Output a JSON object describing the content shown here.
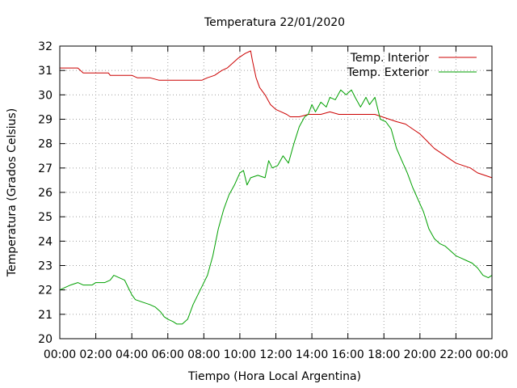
{
  "chart_data": {
    "type": "line",
    "title": "Temperatura 22/01/2020",
    "xlabel": "Tiempo (Hora Local Argentina)",
    "ylabel": "Temperatura (Grados Celsius)",
    "xlim": [
      0,
      24
    ],
    "ylim": [
      20,
      32
    ],
    "grid": true,
    "legend_position": "top-right",
    "x_ticks": [
      "00:00",
      "02:00",
      "04:00",
      "06:00",
      "08:00",
      "10:00",
      "12:00",
      "14:00",
      "16:00",
      "18:00",
      "20:00",
      "22:00",
      "00:00"
    ],
    "y_ticks": [
      "20",
      "21",
      "22",
      "23",
      "24",
      "25",
      "26",
      "27",
      "28",
      "29",
      "30",
      "31",
      "32"
    ],
    "series": [
      {
        "name": "Temp. Interior",
        "color": "#cc0000",
        "points": [
          [
            0,
            31.1
          ],
          [
            0.5,
            31.1
          ],
          [
            1.0,
            31.1
          ],
          [
            1.3,
            30.9
          ],
          [
            2.0,
            30.9
          ],
          [
            2.7,
            30.9
          ],
          [
            2.8,
            30.8
          ],
          [
            4.0,
            30.8
          ],
          [
            4.3,
            30.7
          ],
          [
            5.0,
            30.7
          ],
          [
            5.5,
            30.6
          ],
          [
            6.0,
            30.6
          ],
          [
            7.0,
            30.6
          ],
          [
            7.9,
            30.6
          ],
          [
            8.2,
            30.7
          ],
          [
            8.6,
            30.8
          ],
          [
            9.0,
            31.0
          ],
          [
            9.3,
            31.1
          ],
          [
            9.6,
            31.3
          ],
          [
            9.9,
            31.5
          ],
          [
            10.1,
            31.6
          ],
          [
            10.3,
            31.7
          ],
          [
            10.6,
            31.8
          ],
          [
            10.7,
            31.4
          ],
          [
            10.9,
            30.7
          ],
          [
            11.1,
            30.3
          ],
          [
            11.4,
            30.0
          ],
          [
            11.7,
            29.6
          ],
          [
            12.0,
            29.4
          ],
          [
            12.3,
            29.3
          ],
          [
            12.6,
            29.2
          ],
          [
            12.8,
            29.1
          ],
          [
            13.3,
            29.1
          ],
          [
            13.8,
            29.2
          ],
          [
            14.5,
            29.2
          ],
          [
            15.0,
            29.3
          ],
          [
            15.5,
            29.2
          ],
          [
            16.5,
            29.2
          ],
          [
            17.5,
            29.2
          ],
          [
            17.9,
            29.1
          ],
          [
            18.3,
            29.0
          ],
          [
            18.7,
            28.9
          ],
          [
            19.2,
            28.8
          ],
          [
            19.6,
            28.6
          ],
          [
            20.0,
            28.4
          ],
          [
            20.4,
            28.1
          ],
          [
            20.8,
            27.8
          ],
          [
            21.2,
            27.6
          ],
          [
            21.6,
            27.4
          ],
          [
            22.0,
            27.2
          ],
          [
            22.4,
            27.1
          ],
          [
            22.8,
            27.0
          ],
          [
            23.2,
            26.8
          ],
          [
            23.6,
            26.7
          ],
          [
            24.0,
            26.6
          ]
        ]
      },
      {
        "name": "Temp. Exterior",
        "color": "#00a000",
        "points": [
          [
            0,
            22.0
          ],
          [
            0.3,
            22.1
          ],
          [
            0.6,
            22.2
          ],
          [
            1.0,
            22.3
          ],
          [
            1.3,
            22.2
          ],
          [
            1.8,
            22.2
          ],
          [
            2.0,
            22.3
          ],
          [
            2.5,
            22.3
          ],
          [
            2.8,
            22.4
          ],
          [
            3.0,
            22.6
          ],
          [
            3.3,
            22.5
          ],
          [
            3.6,
            22.4
          ],
          [
            3.8,
            22.1
          ],
          [
            4.0,
            21.8
          ],
          [
            4.2,
            21.6
          ],
          [
            4.6,
            21.5
          ],
          [
            5.0,
            21.4
          ],
          [
            5.3,
            21.3
          ],
          [
            5.6,
            21.1
          ],
          [
            5.8,
            20.9
          ],
          [
            6.0,
            20.8
          ],
          [
            6.3,
            20.7
          ],
          [
            6.5,
            20.6
          ],
          [
            6.8,
            20.6
          ],
          [
            7.1,
            20.8
          ],
          [
            7.4,
            21.4
          ],
          [
            7.8,
            22.0
          ],
          [
            8.2,
            22.6
          ],
          [
            8.5,
            23.4
          ],
          [
            8.8,
            24.5
          ],
          [
            9.1,
            25.3
          ],
          [
            9.4,
            25.9
          ],
          [
            9.7,
            26.3
          ],
          [
            10.0,
            26.8
          ],
          [
            10.2,
            26.9
          ],
          [
            10.4,
            26.3
          ],
          [
            10.6,
            26.6
          ],
          [
            11.0,
            26.7
          ],
          [
            11.4,
            26.6
          ],
          [
            11.6,
            27.3
          ],
          [
            11.8,
            27.0
          ],
          [
            12.1,
            27.1
          ],
          [
            12.4,
            27.5
          ],
          [
            12.7,
            27.2
          ],
          [
            13.0,
            28.0
          ],
          [
            13.3,
            28.7
          ],
          [
            13.6,
            29.1
          ],
          [
            13.8,
            29.2
          ],
          [
            14.0,
            29.6
          ],
          [
            14.2,
            29.3
          ],
          [
            14.5,
            29.7
          ],
          [
            14.8,
            29.5
          ],
          [
            15.0,
            29.9
          ],
          [
            15.3,
            29.8
          ],
          [
            15.6,
            30.2
          ],
          [
            15.9,
            30.0
          ],
          [
            16.2,
            30.2
          ],
          [
            16.4,
            29.9
          ],
          [
            16.7,
            29.5
          ],
          [
            17.0,
            29.9
          ],
          [
            17.2,
            29.6
          ],
          [
            17.5,
            29.9
          ],
          [
            17.8,
            29.0
          ],
          [
            18.1,
            28.9
          ],
          [
            18.4,
            28.6
          ],
          [
            18.7,
            27.8
          ],
          [
            19.0,
            27.3
          ],
          [
            19.3,
            26.8
          ],
          [
            19.6,
            26.2
          ],
          [
            19.9,
            25.7
          ],
          [
            20.2,
            25.2
          ],
          [
            20.5,
            24.5
          ],
          [
            20.8,
            24.1
          ],
          [
            21.1,
            23.9
          ],
          [
            21.4,
            23.8
          ],
          [
            21.7,
            23.6
          ],
          [
            22.0,
            23.4
          ],
          [
            22.3,
            23.3
          ],
          [
            22.6,
            23.2
          ],
          [
            22.9,
            23.1
          ],
          [
            23.2,
            22.9
          ],
          [
            23.5,
            22.6
          ],
          [
            23.8,
            22.5
          ],
          [
            24.0,
            22.6
          ]
        ]
      }
    ]
  }
}
